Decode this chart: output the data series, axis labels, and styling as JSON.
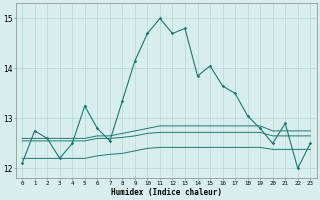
{
  "xlabel": "Humidex (Indice chaleur)",
  "xlim": [
    -0.5,
    23.5
  ],
  "ylim": [
    11.8,
    15.3
  ],
  "yticks": [
    12,
    13,
    14,
    15
  ],
  "xticks": [
    0,
    1,
    2,
    3,
    4,
    5,
    6,
    7,
    8,
    9,
    10,
    11,
    12,
    13,
    14,
    15,
    16,
    17,
    18,
    19,
    20,
    21,
    22,
    23
  ],
  "bg_color": "#d8eeee",
  "grid_color": "#b8d8d8",
  "line_color": "#1a7a6e",
  "line1": [
    12.1,
    12.75,
    12.6,
    12.2,
    12.5,
    13.25,
    12.8,
    12.55,
    13.35,
    14.15,
    14.7,
    15.0,
    14.7,
    14.8,
    13.85,
    14.05,
    13.65,
    13.5,
    13.05,
    12.8,
    12.5,
    12.9,
    12.0,
    12.5
  ],
  "line2": [
    12.6,
    12.6,
    12.6,
    12.6,
    12.6,
    12.6,
    12.65,
    12.65,
    12.7,
    12.75,
    12.8,
    12.85,
    12.85,
    12.85,
    12.85,
    12.85,
    12.85,
    12.85,
    12.85,
    12.85,
    12.75,
    12.75,
    12.75,
    12.75
  ],
  "line3": [
    12.55,
    12.55,
    12.55,
    12.55,
    12.55,
    12.55,
    12.6,
    12.6,
    12.62,
    12.65,
    12.7,
    12.72,
    12.72,
    12.72,
    12.72,
    12.72,
    12.72,
    12.72,
    12.72,
    12.72,
    12.65,
    12.65,
    12.65,
    12.65
  ],
  "line4": [
    12.2,
    12.2,
    12.2,
    12.2,
    12.2,
    12.2,
    12.25,
    12.28,
    12.3,
    12.35,
    12.4,
    12.42,
    12.42,
    12.42,
    12.42,
    12.42,
    12.42,
    12.42,
    12.42,
    12.42,
    12.38,
    12.38,
    12.38,
    12.38
  ]
}
